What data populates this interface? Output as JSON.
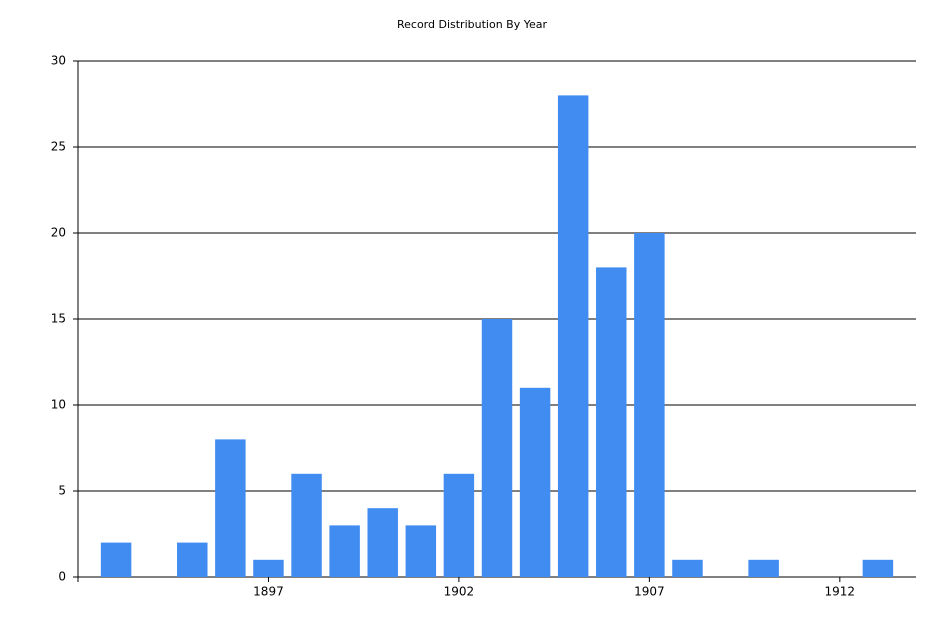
{
  "chart_data": {
    "type": "bar",
    "title": "Record Distribution By Year",
    "x": [
      1893,
      1895,
      1896,
      1897,
      1898,
      1899,
      1900,
      1901,
      1902,
      1903,
      1904,
      1905,
      1906,
      1907,
      1908,
      1910,
      1913
    ],
    "values": [
      2,
      2,
      8,
      1,
      6,
      3,
      4,
      3,
      6,
      15,
      11,
      28,
      18,
      20,
      1,
      1,
      1
    ],
    "color": "#418cf0",
    "xlim": [
      1892,
      1914
    ],
    "xticks": [
      1897,
      1902,
      1907,
      1912
    ],
    "ylim": [
      0,
      30
    ],
    "yticks": [
      0,
      5,
      10,
      15,
      20,
      25,
      30
    ],
    "grid": true
  }
}
